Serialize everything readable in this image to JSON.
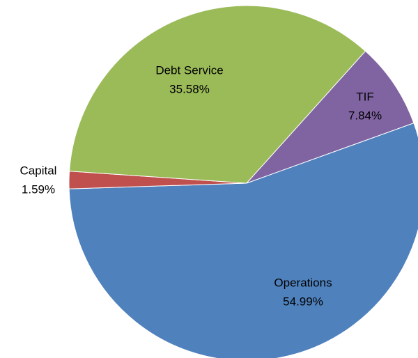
{
  "chart_data": {
    "type": "pie",
    "categories": [
      "Operations",
      "Capital",
      "Debt Service",
      "TIF"
    ],
    "values": [
      54.99,
      1.59,
      35.58,
      7.84
    ],
    "value_labels": [
      "54.99%",
      "1.59%",
      "35.58%",
      "7.84%"
    ],
    "colors": [
      "#4f81bd",
      "#c0504d",
      "#9bbb59",
      "#8064a2"
    ]
  }
}
